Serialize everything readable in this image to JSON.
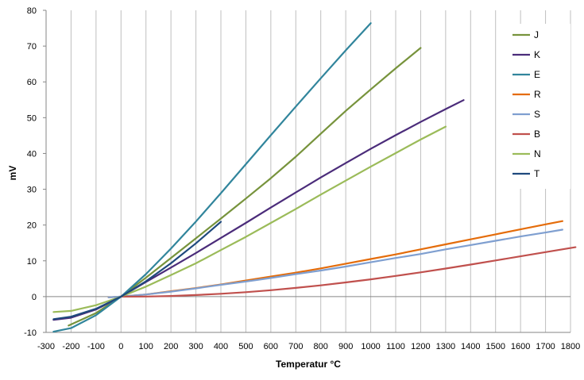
{
  "chart_data": {
    "type": "line",
    "title": "",
    "xlabel": "Temperatur °C",
    "ylabel": "mV",
    "xlim": [
      -300,
      1800
    ],
    "ylim": [
      -10,
      80
    ],
    "x_ticks": [
      -300,
      -200,
      -100,
      0,
      100,
      200,
      300,
      400,
      500,
      600,
      700,
      800,
      900,
      1000,
      1100,
      1200,
      1300,
      1400,
      1500,
      1600,
      1700,
      1800
    ],
    "y_ticks": [
      -10,
      0,
      10,
      20,
      30,
      40,
      50,
      60,
      70,
      80
    ],
    "grid": "vertical",
    "legend_position": "right",
    "series": [
      {
        "name": "J",
        "color": "#77933C",
        "x": [
          -210,
          -100,
          0,
          100,
          200,
          300,
          400,
          500,
          600,
          700,
          800,
          900,
          1000,
          1100,
          1200
        ],
        "y": [
          -8.1,
          -4.6,
          0,
          5.3,
          10.8,
          16.3,
          21.8,
          27.4,
          33.1,
          39.1,
          45.5,
          51.9,
          57.9,
          63.8,
          69.5
        ]
      },
      {
        "name": "K",
        "color": "#4B2C7A",
        "x": [
          -270,
          -200,
          -100,
          0,
          100,
          200,
          300,
          400,
          500,
          600,
          700,
          800,
          900,
          1000,
          1100,
          1200,
          1300,
          1372
        ],
        "y": [
          -6.5,
          -5.9,
          -3.6,
          0,
          4.1,
          8.1,
          12.2,
          16.4,
          20.6,
          24.9,
          29.1,
          33.3,
          37.3,
          41.3,
          45.1,
          48.8,
          52.4,
          54.9
        ]
      },
      {
        "name": "E",
        "color": "#31859C",
        "x": [
          -270,
          -200,
          -100,
          0,
          100,
          200,
          300,
          400,
          500,
          600,
          700,
          800,
          900,
          1000
        ],
        "y": [
          -9.8,
          -8.8,
          -5.2,
          0,
          6.3,
          13.4,
          21.0,
          28.9,
          37.0,
          45.1,
          53.1,
          61.0,
          68.8,
          76.4
        ]
      },
      {
        "name": "R",
        "color": "#E46C0A",
        "x": [
          -50,
          0,
          100,
          200,
          300,
          400,
          500,
          600,
          700,
          800,
          900,
          1000,
          1100,
          1200,
          1300,
          1400,
          1500,
          1600,
          1700,
          1768
        ],
        "y": [
          -0.2,
          0,
          0.6,
          1.5,
          2.4,
          3.4,
          4.5,
          5.6,
          6.7,
          7.9,
          9.2,
          10.5,
          11.8,
          13.2,
          14.6,
          16.0,
          17.4,
          18.8,
          20.2,
          21.1
        ]
      },
      {
        "name": "S",
        "color": "#7F9FD0",
        "x": [
          -50,
          0,
          100,
          200,
          300,
          400,
          500,
          600,
          700,
          800,
          900,
          1000,
          1100,
          1200,
          1300,
          1400,
          1500,
          1600,
          1700,
          1768
        ],
        "y": [
          -0.2,
          0,
          0.6,
          1.4,
          2.3,
          3.3,
          4.2,
          5.2,
          6.3,
          7.3,
          8.4,
          9.6,
          10.8,
          11.9,
          13.2,
          14.4,
          15.6,
          16.8,
          17.9,
          18.7
        ]
      },
      {
        "name": "B",
        "color": "#C0504D",
        "x": [
          0,
          100,
          200,
          300,
          400,
          500,
          600,
          700,
          800,
          900,
          1000,
          1100,
          1200,
          1300,
          1400,
          1500,
          1600,
          1700,
          1820
        ],
        "y": [
          0,
          0.03,
          0.18,
          0.43,
          0.79,
          1.24,
          1.79,
          2.43,
          3.15,
          3.96,
          4.83,
          5.78,
          6.79,
          7.85,
          8.96,
          10.1,
          11.26,
          12.43,
          13.8
        ]
      },
      {
        "name": "N",
        "color": "#9BBB59",
        "x": [
          -270,
          -200,
          -100,
          0,
          100,
          200,
          300,
          400,
          500,
          600,
          700,
          800,
          900,
          1000,
          1100,
          1200,
          1300
        ],
        "y": [
          -4.3,
          -4.0,
          -2.4,
          0,
          2.8,
          6.0,
          9.3,
          13.0,
          16.7,
          20.6,
          24.5,
          28.5,
          32.4,
          36.3,
          40.1,
          43.9,
          47.5
        ]
      },
      {
        "name": "T",
        "color": "#1F497D",
        "x": [
          -270,
          -200,
          -100,
          0,
          100,
          200,
          300,
          400
        ],
        "y": [
          -6.3,
          -5.6,
          -3.4,
          0,
          4.3,
          9.3,
          14.9,
          20.9
        ]
      }
    ]
  }
}
